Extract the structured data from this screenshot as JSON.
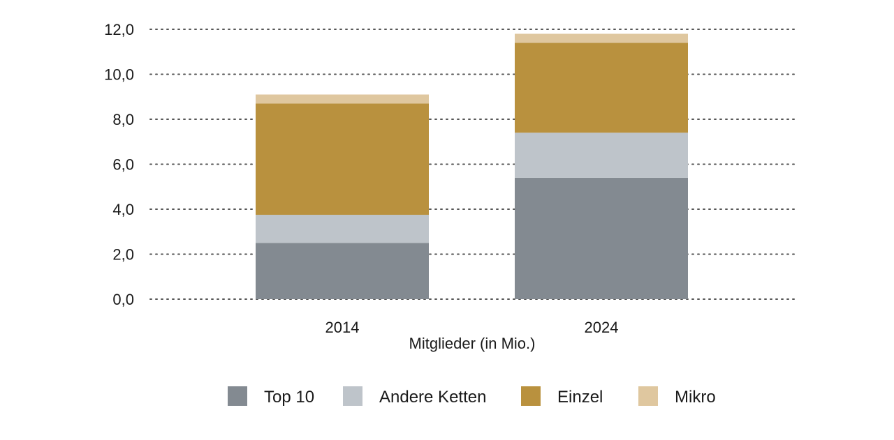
{
  "chart_data": {
    "type": "bar",
    "stacked": true,
    "categories": [
      "2014",
      "2024"
    ],
    "xlabel": "Mitglieder (in Mio.)",
    "ylabel": "",
    "title": "",
    "ylim": [
      0,
      12
    ],
    "yticks": [
      "0,0",
      "2,0",
      "4,0",
      "6,0",
      "8,0",
      "10,0",
      "12,0"
    ],
    "grid": true,
    "legend_position": "bottom",
    "series": [
      {
        "name": "Top 10",
        "color": "#838a91",
        "values": [
          2.5,
          5.4
        ]
      },
      {
        "name": "Andere Ketten",
        "color": "#bec4ca",
        "values": [
          1.25,
          2.0
        ]
      },
      {
        "name": "Einzel",
        "color": "#b9913e",
        "values": [
          4.95,
          4.0
        ]
      },
      {
        "name": "Mikro",
        "color": "#dfc79f",
        "values": [
          0.4,
          0.4
        ]
      }
    ]
  }
}
